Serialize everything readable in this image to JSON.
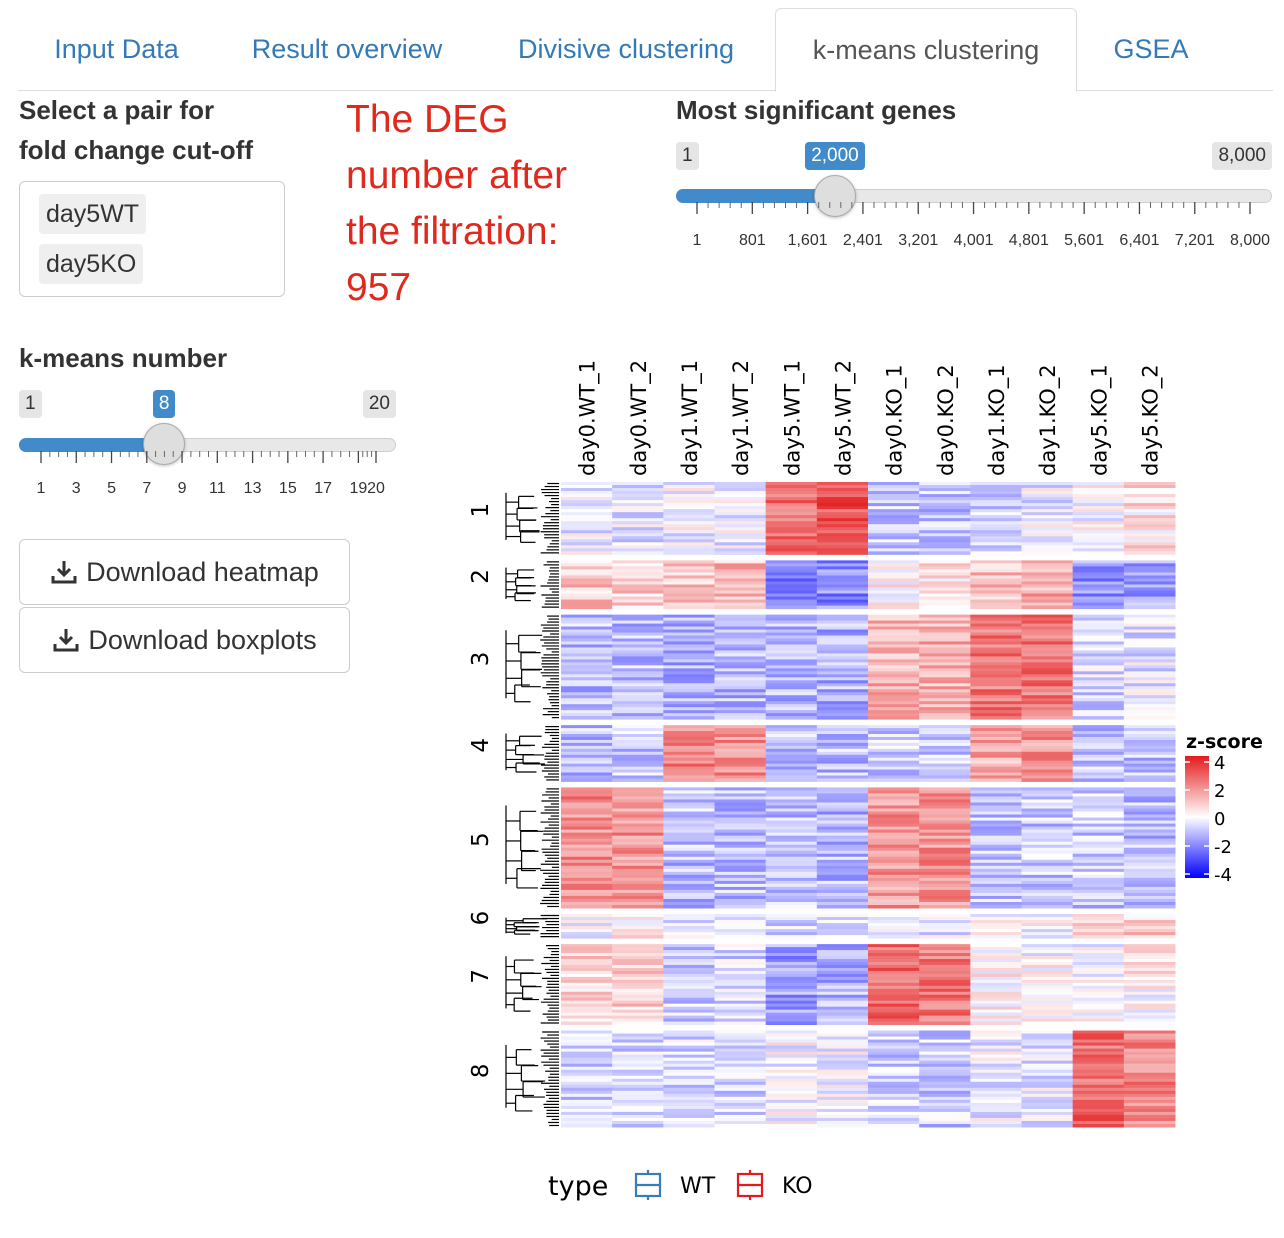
{
  "tabs": [
    {
      "label": "Input Data",
      "active": false
    },
    {
      "label": "Result overview",
      "active": false
    },
    {
      "label": "Divisive clustering",
      "active": false
    },
    {
      "label": "k-means clustering",
      "active": true
    },
    {
      "label": "GSEA",
      "active": false
    }
  ],
  "pair_select": {
    "label_line1": "Select a pair for",
    "label_line2": "fold change cut-off",
    "selected": [
      "day5WT",
      "day5KO"
    ]
  },
  "deg_message": {
    "lines": [
      "The DEG",
      "number after",
      "the filtration:",
      "957"
    ],
    "color": "#e1281d"
  },
  "genes_slider": {
    "label": "Most significant genes",
    "min": "1",
    "max": "8,000",
    "value": "2,000",
    "min_num": 1,
    "max_num": 8000,
    "value_num": 2000,
    "ticks": [
      "1",
      "801",
      "1,601",
      "2,401",
      "3,201",
      "4,001",
      "4,801",
      "5,601",
      "6,401",
      "7,201",
      "8,000"
    ]
  },
  "kmeans_slider": {
    "label": "k-means number",
    "min": "1",
    "max": "20",
    "value": "8",
    "min_num": 1,
    "max_num": 20,
    "value_num": 8,
    "ticks": [
      "1",
      "3",
      "5",
      "7",
      "9",
      "11",
      "13",
      "15",
      "17",
      "19",
      "20"
    ]
  },
  "buttons": {
    "download_heatmap": "Download heatmap",
    "download_boxplots": "Download boxplots"
  },
  "accent_color": "#428bca",
  "chart_data": {
    "type": "heatmap",
    "columns": [
      "day0.WT_1",
      "day0.WT_2",
      "day1.WT_1",
      "day1.WT_2",
      "day5.WT_1",
      "day5.WT_2",
      "day0.KO_1",
      "day0.KO_2",
      "day1.KO_1",
      "day1.KO_2",
      "day5.KO_1",
      "day5.KO_2"
    ],
    "column_types": [
      "WT",
      "WT",
      "WT",
      "WT",
      "WT",
      "WT",
      "KO",
      "KO",
      "KO",
      "KO",
      "KO",
      "KO"
    ],
    "clusters": [
      "1",
      "2",
      "3",
      "4",
      "5",
      "6",
      "7",
      "8"
    ],
    "cluster_relative_sizes": [
      0.09,
      0.06,
      0.13,
      0.07,
      0.15,
      0.03,
      0.1,
      0.12
    ],
    "cluster_mean_zscores": [
      [
        -0.3,
        -0.4,
        -0.2,
        -0.3,
        2.5,
        3.0,
        -0.8,
        -0.9,
        -0.6,
        -0.3,
        0.0,
        0.5
      ],
      [
        1.0,
        0.8,
        1.0,
        1.2,
        -2.0,
        -1.8,
        0.3,
        0.5,
        1.2,
        1.4,
        -1.6,
        -1.4
      ],
      [
        -1.0,
        -1.0,
        -1.2,
        -1.1,
        -1.2,
        -1.2,
        1.3,
        1.4,
        2.3,
        2.4,
        -0.6,
        -0.4
      ],
      [
        -1.0,
        -0.8,
        2.2,
        2.0,
        -0.9,
        -1.0,
        -0.7,
        -0.8,
        1.5,
        1.8,
        -1.0,
        -0.9
      ],
      [
        2.0,
        1.9,
        -1.0,
        -1.0,
        -1.0,
        -1.1,
        1.8,
        1.9,
        -0.9,
        -0.8,
        -0.8,
        -1.0
      ],
      [
        0.0,
        0.2,
        -0.3,
        -0.1,
        -0.7,
        -0.6,
        -0.4,
        -0.3,
        -0.2,
        -0.1,
        0.6,
        0.8
      ],
      [
        0.6,
        0.8,
        -0.7,
        -0.6,
        -1.5,
        -1.2,
        2.5,
        2.3,
        0.2,
        0.0,
        0.0,
        0.2
      ],
      [
        -0.8,
        -0.7,
        -0.6,
        -0.6,
        -0.1,
        -0.2,
        -0.7,
        -0.8,
        -0.3,
        -0.4,
        2.6,
        2.2
      ]
    ],
    "legend": {
      "title": "z-score",
      "ticks": [
        "4",
        "2",
        "0",
        "-2",
        "-4"
      ],
      "range": [
        -4,
        4
      ],
      "colors": {
        "low": "#0000ff",
        "mid": "#ffffff",
        "high": "#e41a1c"
      }
    },
    "annotation_legend": {
      "title": "type",
      "entries": [
        {
          "label": "WT",
          "color": "#377eb8"
        },
        {
          "label": "KO",
          "color": "#e41a1c"
        }
      ]
    }
  }
}
